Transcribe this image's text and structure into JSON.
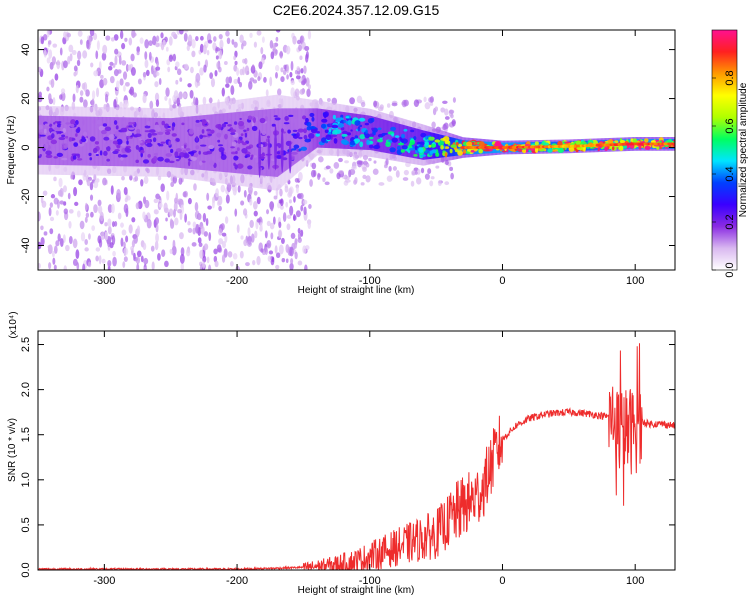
{
  "title": "C2E6.2024.357.12.09.G15",
  "chart_data": [
    {
      "type": "heatmap",
      "xlabel": "Height of straight line (km)",
      "ylabel": "Frequency (Hz)",
      "xlim": [
        -350,
        130
      ],
      "ylim": [
        -50,
        48
      ],
      "xticks": [
        -300,
        -200,
        -100,
        0,
        100
      ],
      "yticks": [
        -40,
        -20,
        0,
        20,
        40
      ],
      "colorbar": {
        "label": "Normalized spectral amplitude",
        "range": [
          0.0,
          1.0
        ],
        "ticks": [
          "0.0",
          "0.2",
          "0.4",
          "0.6",
          "0.8"
        ],
        "colors": [
          "#ffffff",
          "#d9b8f0",
          "#8a2be2",
          "#3a00ff",
          "#0040ff",
          "#00e5ff",
          "#00ff60",
          "#b0ff00",
          "#ffff00",
          "#ff9a00",
          "#ff2020",
          "#ff1090"
        ]
      },
      "band_profile": [
        {
          "x": -350,
          "center": 3,
          "half_width": 10,
          "level": 0.2
        },
        {
          "x": -250,
          "center": 2,
          "half_width": 10,
          "level": 0.2
        },
        {
          "x": -170,
          "center": 2,
          "half_width": 14,
          "level": 0.2
        },
        {
          "x": -140,
          "center": 8,
          "half_width": 8,
          "level": 0.35
        },
        {
          "x": -100,
          "center": 6,
          "half_width": 7,
          "level": 0.4
        },
        {
          "x": -60,
          "center": 1,
          "half_width": 6,
          "level": 0.45
        },
        {
          "x": -30,
          "center": 0,
          "half_width": 3,
          "level": 0.8
        },
        {
          "x": 0,
          "center": 0,
          "half_width": 2,
          "level": 0.85
        },
        {
          "x": 50,
          "center": 0.5,
          "half_width": 2,
          "level": 0.75
        },
        {
          "x": 100,
          "center": 1.5,
          "half_width": 2,
          "level": 0.85
        },
        {
          "x": 130,
          "center": 1.5,
          "half_width": 2,
          "level": 0.8
        }
      ]
    },
    {
      "type": "line",
      "xlabel": "Height of straight line (km)",
      "ylabel": "SNR (10 * v/v)",
      "scale_note": "(x10⁴)",
      "xlim": [
        -350,
        130
      ],
      "ylim": [
        0.0,
        2.65
      ],
      "xticks": [
        -300,
        -200,
        -100,
        0,
        100
      ],
      "yticks": [
        "0.0",
        "0.5",
        "1.0",
        "1.5",
        "2.0",
        "2.5"
      ],
      "line_color": "#ee2c2c",
      "series": [
        {
          "x": [
            -350,
            -300,
            -250,
            -200,
            -170,
            -150,
            -130,
            -110,
            -100,
            -90,
            -80,
            -70,
            -60,
            -50,
            -40,
            -30,
            -20,
            -15,
            -10,
            -5,
            0,
            10,
            20,
            30,
            40,
            50,
            60,
            70,
            80,
            85,
            90,
            95,
            100,
            105,
            110,
            120,
            130
          ],
          "y": [
            0.01,
            0.01,
            0.01,
            0.01,
            0.02,
            0.03,
            0.05,
            0.1,
            0.15,
            0.2,
            0.25,
            0.3,
            0.35,
            0.4,
            0.55,
            0.7,
            0.8,
            0.9,
            1.1,
            1.3,
            1.45,
            1.6,
            1.68,
            1.72,
            1.74,
            1.75,
            1.74,
            1.72,
            1.7,
            1.65,
            1.5,
            1.55,
            1.55,
            1.65,
            1.62,
            1.62,
            1.6
          ]
        }
      ]
    }
  ]
}
